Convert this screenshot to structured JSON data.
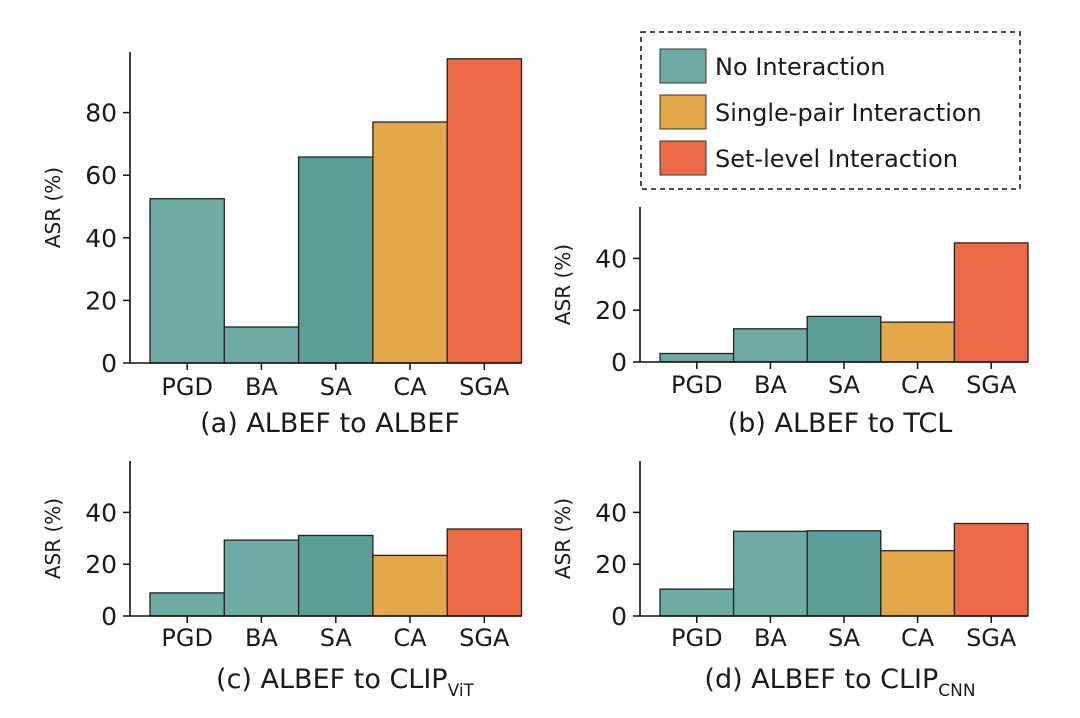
{
  "colors": {
    "no_interaction": "#6eaba6",
    "single_pair": "#e3a84a",
    "set_level": "#ed6a47",
    "axis": "#111111"
  },
  "legend": {
    "items": [
      {
        "label": "No Interaction",
        "color": "#6eaba6"
      },
      {
        "label": "Single-pair Interaction",
        "color": "#e3a84a"
      },
      {
        "label": "Set-level Interaction",
        "color": "#ed6a47"
      }
    ]
  },
  "chart_data": [
    {
      "type": "bar",
      "panel": "a",
      "caption": "(a) ALBEF to ALBEF",
      "caption_main": "(a) ALBEF to ALBEF",
      "caption_sub": "",
      "categories": [
        "PGD",
        "BA",
        "SA",
        "CA",
        "SGA"
      ],
      "values": [
        52.5,
        11.5,
        65.8,
        77.0,
        97.2
      ],
      "bar_colors": [
        "#6eaba6",
        "#6eaba6",
        "#5b9e99",
        "#e3a84a",
        "#ed6a47"
      ],
      "ylabel": "ASR (%)",
      "ylim": [
        0,
        100
      ],
      "yticks": [
        0,
        20,
        40,
        60,
        80
      ]
    },
    {
      "type": "bar",
      "panel": "b",
      "caption": "(b) ALBEF to TCL",
      "caption_main": "(b) ALBEF to TCL",
      "caption_sub": "",
      "categories": [
        "PGD",
        "BA",
        "SA",
        "CA",
        "SGA"
      ],
      "values": [
        3.3,
        12.8,
        17.6,
        15.4,
        46.0
      ],
      "bar_colors": [
        "#6eaba6",
        "#6eaba6",
        "#5b9e99",
        "#e3a84a",
        "#ed6a47"
      ],
      "ylabel": "ASR (%)",
      "ylim": [
        0,
        60
      ],
      "yticks": [
        0,
        20,
        40
      ]
    },
    {
      "type": "bar",
      "panel": "c",
      "caption": "(c) ALBEF to CLIPViT",
      "caption_main": "(c) ALBEF to CLIP",
      "caption_sub": "ViT",
      "categories": [
        "PGD",
        "BA",
        "SA",
        "CA",
        "SGA"
      ],
      "values": [
        8.9,
        29.3,
        31.1,
        23.4,
        33.6
      ],
      "bar_colors": [
        "#6eaba6",
        "#6eaba6",
        "#5b9e99",
        "#e3a84a",
        "#ed6a47"
      ],
      "ylabel": "ASR (%)",
      "ylim": [
        0,
        60
      ],
      "yticks": [
        0,
        20,
        40
      ]
    },
    {
      "type": "bar",
      "panel": "d",
      "caption": "(d) ALBEF to CLIPCNN",
      "caption_main": "(d) ALBEF to CLIP",
      "caption_sub": "CNN",
      "categories": [
        "PGD",
        "BA",
        "SA",
        "CA",
        "SGA"
      ],
      "values": [
        10.4,
        32.7,
        32.9,
        25.2,
        35.7
      ],
      "bar_colors": [
        "#6eaba6",
        "#6eaba6",
        "#5b9e99",
        "#e3a84a",
        "#ed6a47"
      ],
      "ylabel": "ASR (%)",
      "ylim": [
        0,
        60
      ],
      "yticks": [
        0,
        20,
        40
      ]
    }
  ]
}
